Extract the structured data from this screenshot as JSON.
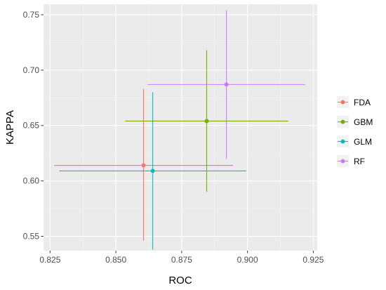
{
  "chart_data": {
    "type": "scatter",
    "xlabel": "ROC",
    "ylabel": "KAPPA",
    "xlim": [
      0.8225,
      0.9265
    ],
    "ylim": [
      0.537,
      0.7595
    ],
    "x_ticks": [
      0.825,
      0.85,
      0.875,
      0.9,
      0.925
    ],
    "x_tick_labels": [
      "0.825",
      "0.850",
      "0.875",
      "0.900",
      "0.925"
    ],
    "y_ticks": [
      0.55,
      0.6,
      0.65,
      0.7,
      0.75
    ],
    "y_tick_labels": [
      "0.55",
      "0.60",
      "0.65",
      "0.70",
      "0.75"
    ],
    "grid": true,
    "legend_position": "right",
    "series": [
      {
        "name": "FDA",
        "color": "#F8766D",
        "x": 0.8605,
        "y": 0.614,
        "x_range": [
          0.8265,
          0.8945
        ],
        "y_range": [
          0.546,
          0.683
        ]
      },
      {
        "name": "GBM",
        "color": "#7CAE00",
        "x": 0.8845,
        "y": 0.654,
        "x_range": [
          0.8535,
          0.9155
        ],
        "y_range": [
          0.59,
          0.718
        ]
      },
      {
        "name": "GLM",
        "color": "#00BFC4",
        "x": 0.864,
        "y": 0.609,
        "x_range": [
          0.8285,
          0.8995
        ],
        "y_range": [
          0.538,
          0.68
        ]
      },
      {
        "name": "RF",
        "color": "#C77CFF",
        "x": 0.892,
        "y": 0.687,
        "x_range": [
          0.862,
          0.922
        ],
        "y_range": [
          0.62,
          0.754
        ]
      }
    ]
  }
}
